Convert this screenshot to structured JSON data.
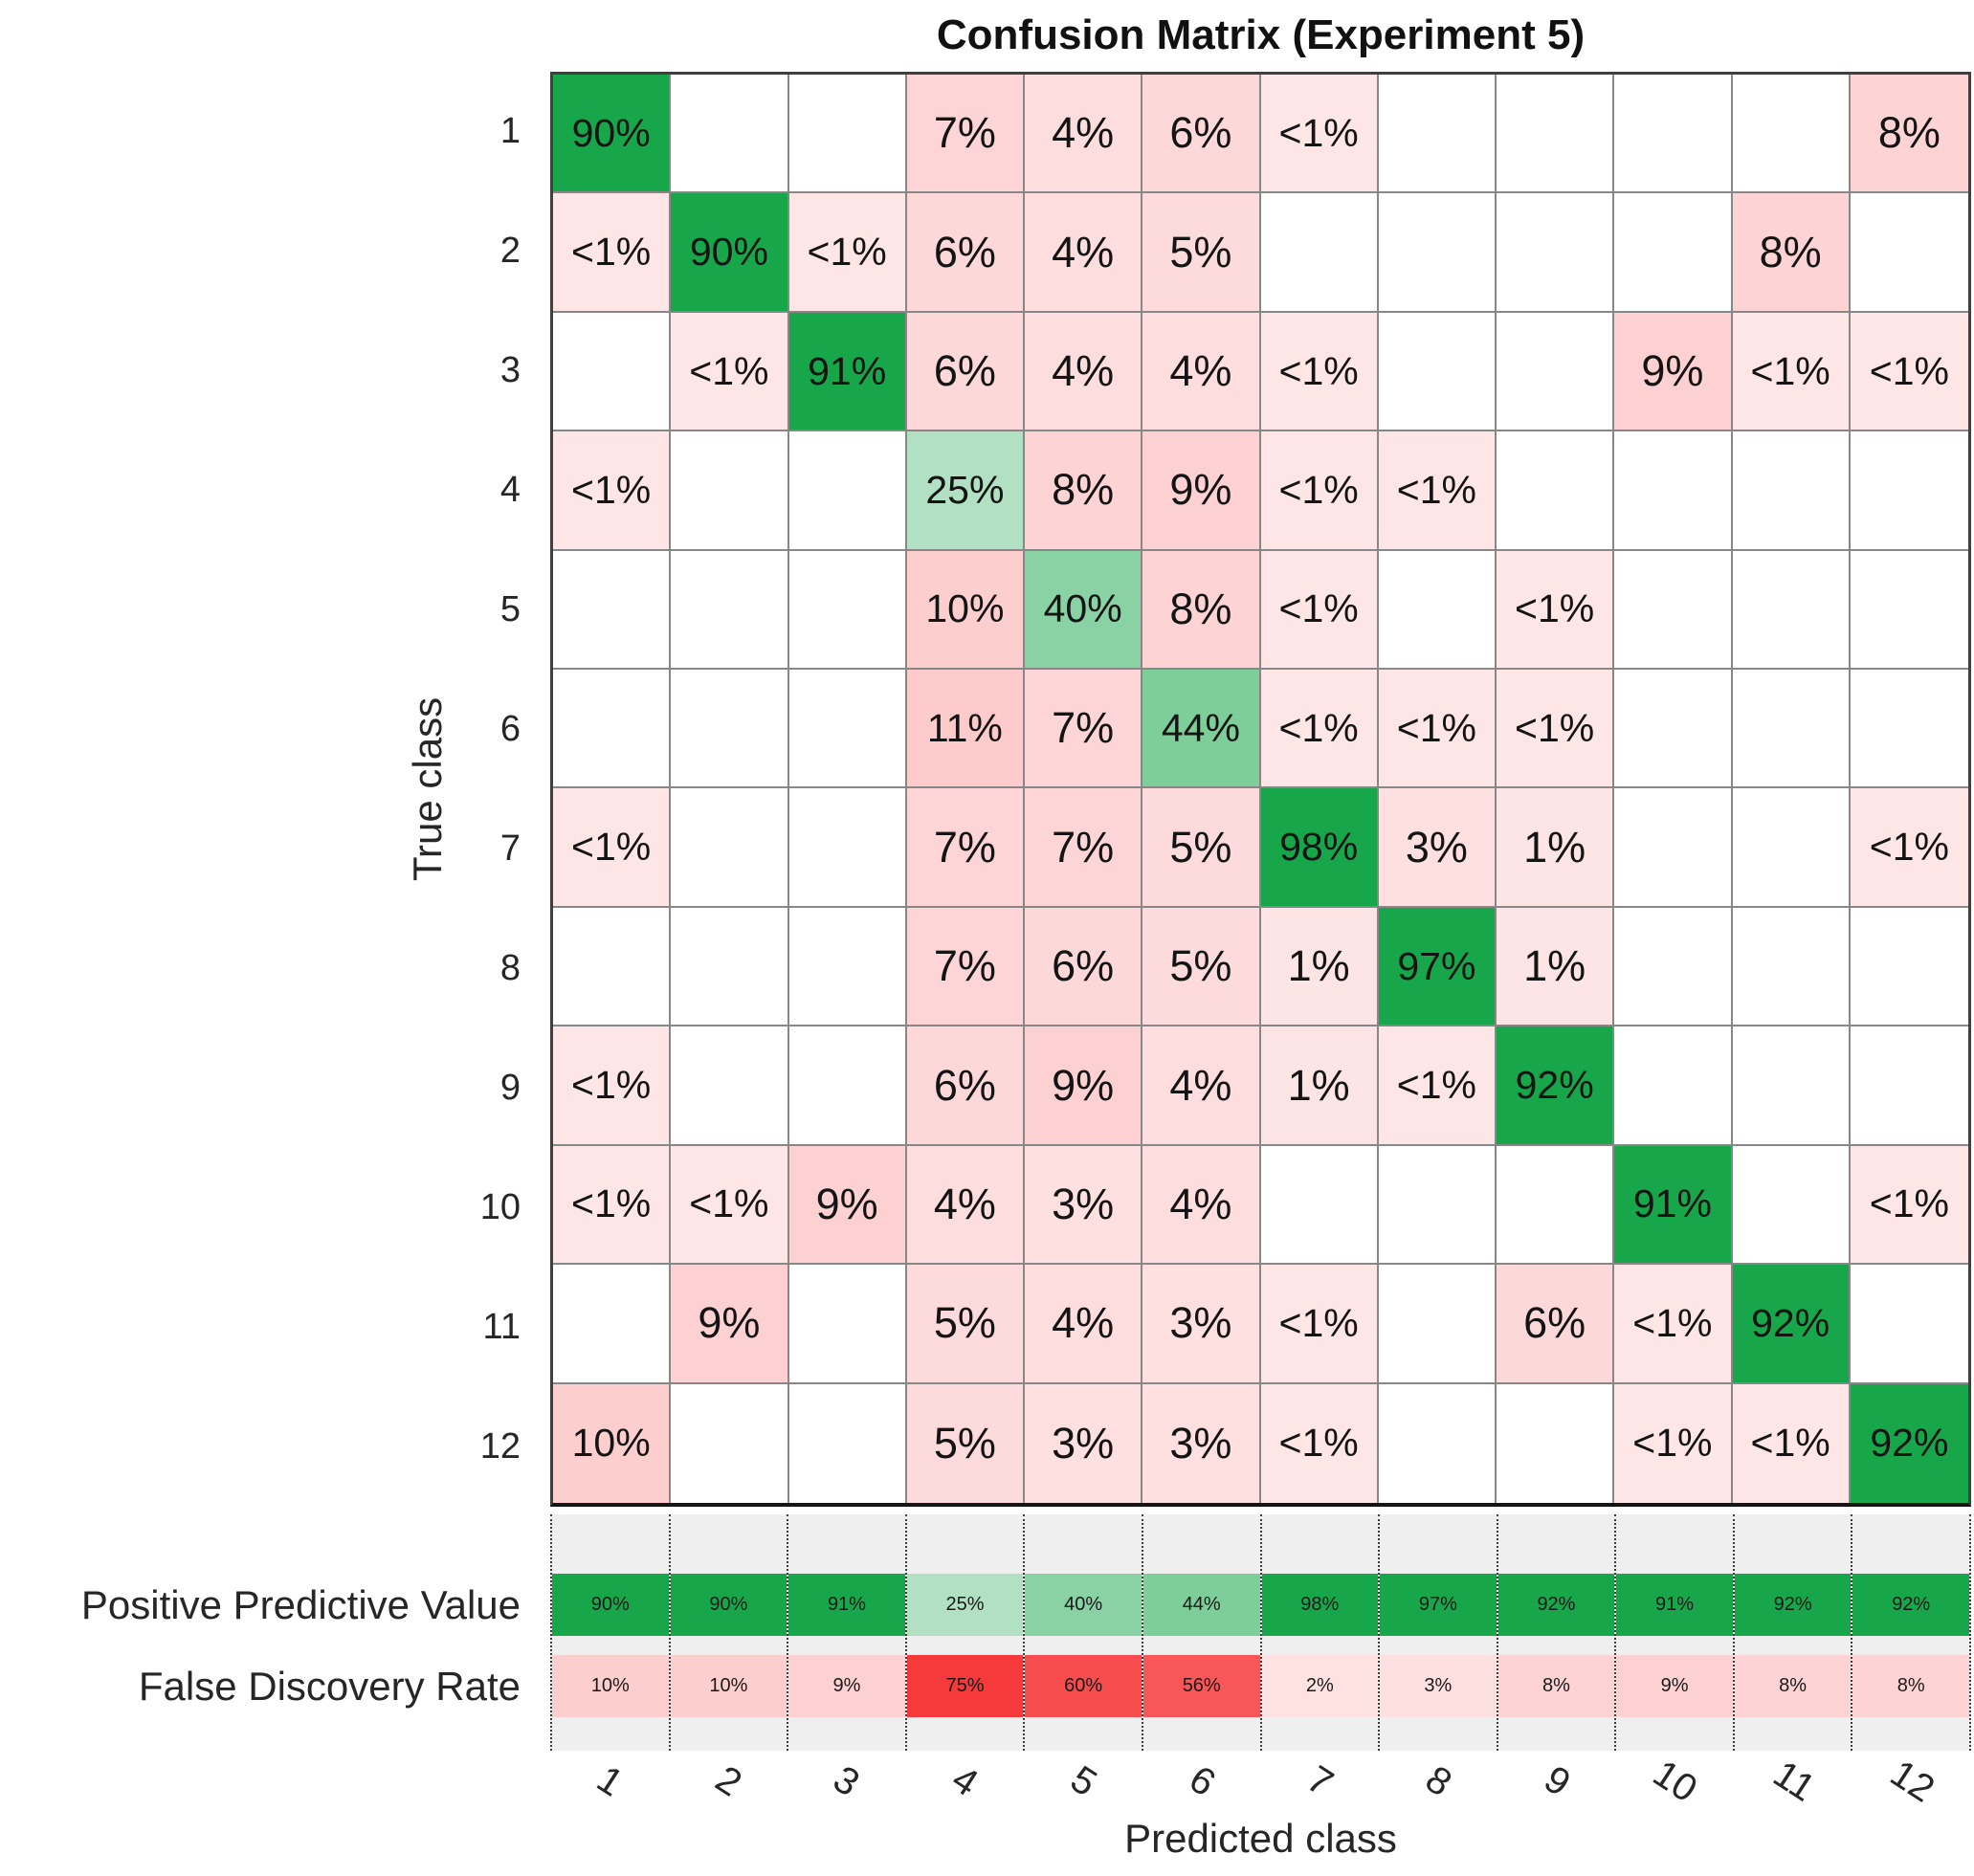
{
  "title": "Confusion Matrix (Experiment 5)",
  "summary": {
    "ppv_label": "Positive Predictive Value",
    "fdr_label": "False Discovery Rate"
  },
  "chart_data": {
    "type": "heatmap",
    "title": "Confusion Matrix (Experiment 5)",
    "xlabel": "Predicted class",
    "ylabel": "True class",
    "x_tick_labels": [
      "1",
      "2",
      "3",
      "4",
      "5",
      "6",
      "7",
      "8",
      "9",
      "10",
      "11",
      "12"
    ],
    "y_tick_labels": [
      "1",
      "2",
      "3",
      "4",
      "5",
      "6",
      "7",
      "8",
      "9",
      "10",
      "11",
      "12"
    ],
    "cell_labels": [
      [
        "90%",
        "",
        "",
        "7%",
        "4%",
        "6%",
        "<1%",
        "",
        "",
        "",
        "",
        "8%"
      ],
      [
        "<1%",
        "90%",
        "<1%",
        "6%",
        "4%",
        "5%",
        "",
        "",
        "",
        "",
        "8%",
        ""
      ],
      [
        "",
        "<1%",
        "91%",
        "6%",
        "4%",
        "4%",
        "<1%",
        "",
        "",
        "9%",
        "<1%",
        "<1%"
      ],
      [
        "<1%",
        "",
        "",
        "25%",
        "8%",
        "9%",
        "<1%",
        "<1%",
        "",
        "",
        "",
        ""
      ],
      [
        "",
        "",
        "",
        "10%",
        "40%",
        "8%",
        "<1%",
        "",
        "<1%",
        "",
        "",
        ""
      ],
      [
        "",
        "",
        "",
        "11%",
        "7%",
        "44%",
        "<1%",
        "<1%",
        "<1%",
        "",
        "",
        ""
      ],
      [
        "<1%",
        "",
        "",
        "7%",
        "7%",
        "5%",
        "98%",
        "3%",
        "1%",
        "",
        "",
        "<1%"
      ],
      [
        "",
        "",
        "",
        "7%",
        "6%",
        "5%",
        "1%",
        "97%",
        "1%",
        "",
        "",
        ""
      ],
      [
        "<1%",
        "",
        "",
        "6%",
        "9%",
        "4%",
        "1%",
        "<1%",
        "92%",
        "",
        "",
        ""
      ],
      [
        "<1%",
        "<1%",
        "9%",
        "4%",
        "3%",
        "4%",
        "",
        "",
        "",
        "91%",
        "",
        "<1%"
      ],
      [
        "",
        "9%",
        "",
        "5%",
        "4%",
        "3%",
        "<1%",
        "",
        "6%",
        "<1%",
        "92%",
        ""
      ],
      [
        "10%",
        "",
        "",
        "5%",
        "3%",
        "3%",
        "<1%",
        "",
        "",
        "<1%",
        "<1%",
        "92%"
      ]
    ],
    "ppv_row": {
      "label": "Positive Predictive Value",
      "values": [
        "90%",
        "90%",
        "91%",
        "25%",
        "40%",
        "44%",
        "98%",
        "97%",
        "92%",
        "91%",
        "92%",
        "92%"
      ]
    },
    "fdr_row": {
      "label": "False Discovery Rate",
      "values": [
        "10%",
        "10%",
        "9%",
        "75%",
        "60%",
        "56%",
        "2%",
        "3%",
        "8%",
        "9%",
        "8%",
        "8%"
      ]
    },
    "colors": {
      "diagonal_green": "#17A64A",
      "off_diagonal_red": "#F6393B",
      "summary_background": "#EFEFEF",
      "grid_line": "#878787",
      "outer_border": "#404040"
    },
    "legend": "none",
    "grid": true
  }
}
